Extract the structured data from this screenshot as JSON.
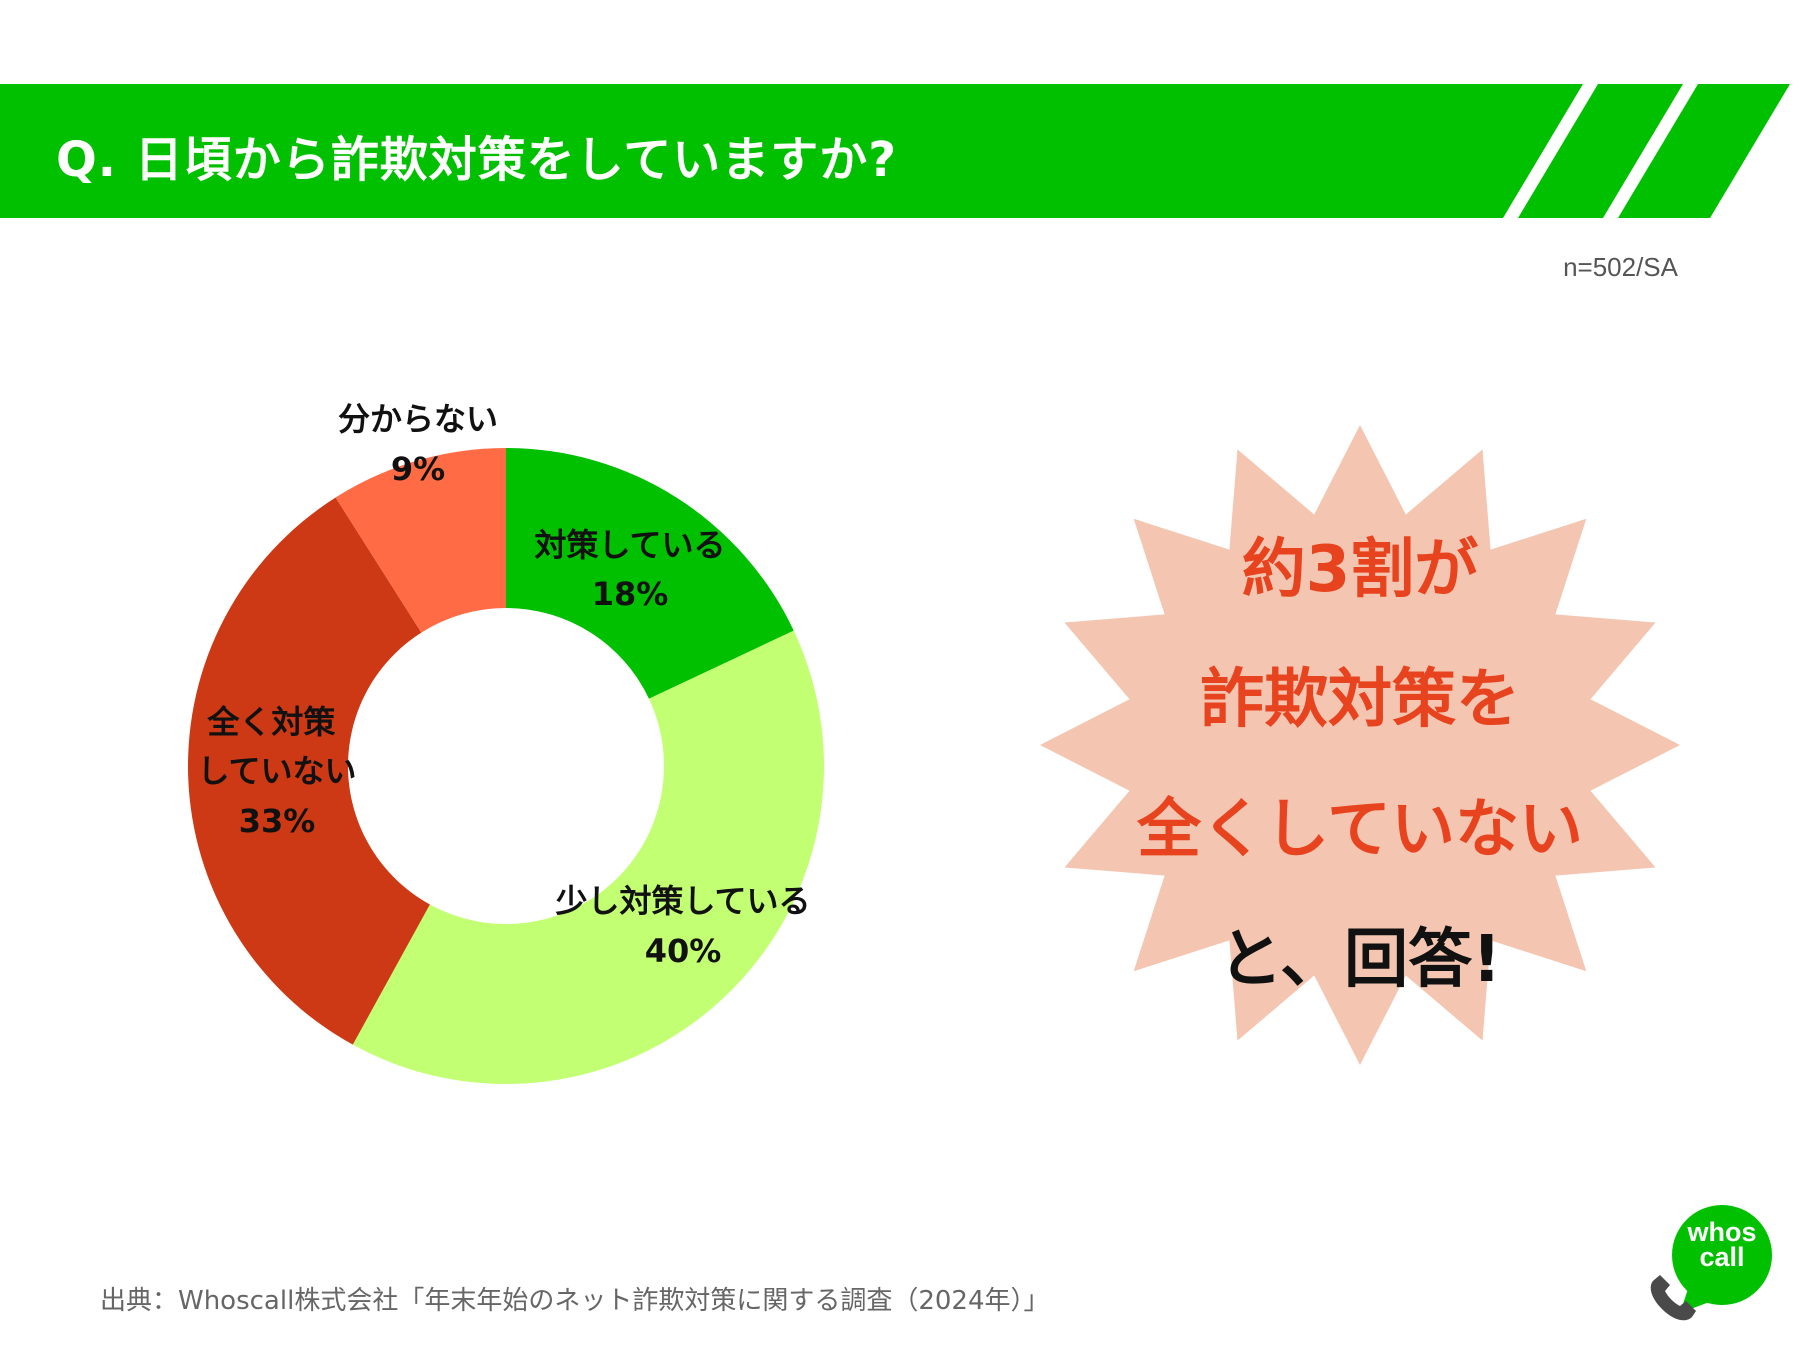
{
  "header": {
    "question": "Q. 日頃から詐欺対策をしていますか?",
    "sample_note": "n=502/SA",
    "bar_color": "#00c000"
  },
  "chart_data": {
    "type": "pie",
    "donut": true,
    "slices": [
      {
        "label": "対策している",
        "value": 18,
        "display": "18%",
        "color": "#00c000"
      },
      {
        "label": "少し対策している",
        "value": 40,
        "display": "40%",
        "color": "#c2ff72"
      },
      {
        "label": "全く対策していない",
        "value": 33,
        "display": "33%",
        "color": "#cc3914"
      },
      {
        "label": "分からない",
        "value": 9,
        "display": "9%",
        "color": "#ff6b45"
      }
    ]
  },
  "callout": {
    "lines": [
      {
        "text": "約3割が",
        "color": "#e8431f"
      },
      {
        "text": "詐欺対策を",
        "color": "#e8431f"
      },
      {
        "text": "全くしていない",
        "color": "#e8431f"
      },
      {
        "text": "と、回答!",
        "color": "#111111"
      }
    ],
    "burst_color": "#f4c6b1"
  },
  "footer": {
    "source": "出典：Whoscall株式会社「年末年始のネット詐欺対策に関する調査（2024年）」"
  },
  "logo": {
    "line1": "whos",
    "line2": "call",
    "icon": "phone-icon"
  }
}
